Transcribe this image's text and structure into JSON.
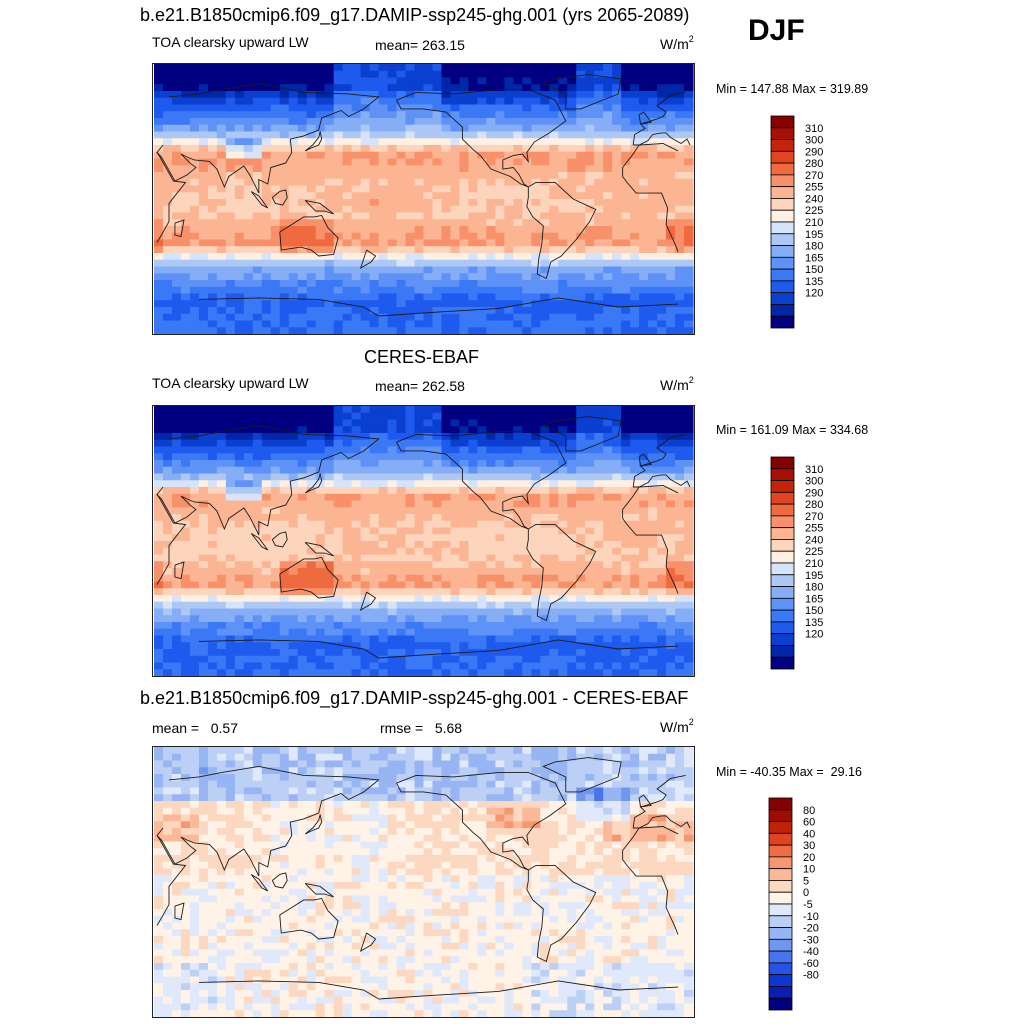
{
  "season": "DJF",
  "colors": {
    "abs": [
      "#000080",
      "#0027a8",
      "#0b3fd0",
      "#1e5aee",
      "#3a78f5",
      "#5e92f7",
      "#86aef6",
      "#aec8f6",
      "#d5e4fb",
      "#fff0e2",
      "#fdd5bc",
      "#fbb593",
      "#f8916a",
      "#f06a3f",
      "#e04420",
      "#c52408",
      "#a81004",
      "#870000"
    ],
    "diff": [
      "#000080",
      "#0a1fb0",
      "#0e36d0",
      "#2552e8",
      "#4a74ee",
      "#7196f0",
      "#97b4f3",
      "#bcd0f6",
      "#dfe9fb",
      "#fff2e6",
      "#fdd8c0",
      "#fbb99a",
      "#f8976f",
      "#f06d44",
      "#de4420",
      "#c02206",
      "#9f0c02",
      "#870000"
    ]
  },
  "panels": [
    {
      "title": "b.e21.B1850cmip6.f09_g17.DAMIP-ssp245-ghg.001 (yrs 2065-2089)",
      "left_label": "TOA clearsky upward LW",
      "stat_text": "mean= 263.15",
      "units": "W/m",
      "units_sup": "2",
      "minmax": "Min = 147.88 Max = 319.89",
      "colorbar": {
        "levels": [
          "310",
          "300",
          "290",
          "280",
          "270",
          "255",
          "240",
          "225",
          "210",
          "195",
          "180",
          "165",
          "150",
          "135",
          "120"
        ]
      },
      "field": {
        "trop": 10.6,
        "sub": 11.6,
        "midn": 6.6,
        "mids": 6.2,
        "arctic": 2.4,
        "antarc": 3.6
      }
    },
    {
      "title": "CERES-EBAF",
      "left_label": "TOA clearsky upward LW",
      "stat_text": "mean= 262.58",
      "units": "W/m",
      "units_sup": "2",
      "minmax": "Min = 161.09 Max = 334.68",
      "colorbar": {
        "levels": [
          "310",
          "300",
          "290",
          "280",
          "270",
          "255",
          "240",
          "225",
          "210",
          "195",
          "180",
          "165",
          "150",
          "135",
          "120"
        ]
      },
      "field": {
        "trop": 10.4,
        "sub": 11.5,
        "midn": 6.4,
        "mids": 6.3,
        "arctic": 2.2,
        "antarc": 3.4
      }
    },
    {
      "title": "b.e21.B1850cmip6.f09_g17.DAMIP-ssp245-ghg.001 - CERES-EBAF",
      "left_label": "mean =   0.57",
      "stat_text": "rmse =   5.68",
      "units": "W/m",
      "units_sup": "2",
      "minmax": "Min = -40.35 Max =  29.16",
      "colorbar": {
        "levels": [
          "80",
          "60",
          "40",
          "30",
          "20",
          "10",
          "5",
          "0",
          "-5",
          "-10",
          "-20",
          "-30",
          "-40",
          "-60",
          "-80"
        ]
      },
      "field": {
        "base": 8.9
      }
    }
  ]
}
